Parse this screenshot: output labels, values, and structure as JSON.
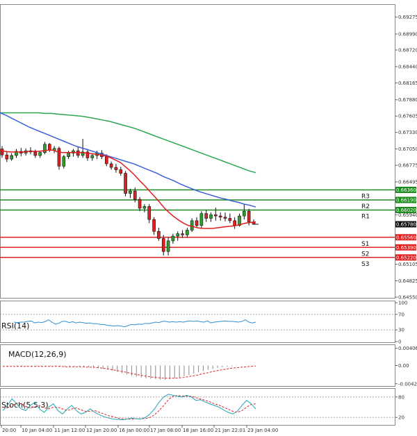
{
  "chart_data": {
    "type": "candlestick",
    "price_axis": {
      "ticks": [
        "0.69275",
        "0.68990",
        "0.68720",
        "0.68440",
        "0.68165",
        "0.67880",
        "0.67605",
        "0.67330",
        "0.67050",
        "0.66775",
        "0.66495",
        "0.66360",
        "0.66190",
        "0.66020",
        "0.65940",
        "0.65780",
        "0.65560",
        "0.65390",
        "0.65220",
        "0.65105",
        "0.64825",
        "0.64550"
      ],
      "ylim": [
        0.6455,
        0.6947
      ]
    },
    "x_ticks": [
      "20:00",
      "10 Jan 04:00",
      "11 Jan 12:00",
      "12 Jan 20:00",
      "16 Jan 00:00",
      "17 Jan 08:00",
      "18 Jan 16:00",
      "21 Jan 22:01",
      "23 Jan 04:00"
    ],
    "levels": [
      {
        "name": "R3",
        "value": 0.6636,
        "color": "#1a8a1a"
      },
      {
        "name": "R2",
        "value": 0.6619,
        "color": "#1a8a1a"
      },
      {
        "name": "R1",
        "value": 0.6602,
        "color": "#1a8a1a"
      },
      {
        "name": "S1",
        "value": 0.6556,
        "color": "#e02020"
      },
      {
        "name": "S2",
        "value": 0.6539,
        "color": "#e02020"
      },
      {
        "name": "S3",
        "value": 0.6522,
        "color": "#e02020"
      }
    ],
    "current_price": {
      "value": 0.6578,
      "label": "0.65780"
    },
    "candles": [
      [
        0.6705,
        0.671,
        0.669,
        0.6695
      ],
      [
        0.6695,
        0.67,
        0.6683,
        0.6688
      ],
      [
        0.6688,
        0.6698,
        0.6685,
        0.6694
      ],
      [
        0.6694,
        0.6705,
        0.669,
        0.6701
      ],
      [
        0.6701,
        0.6707,
        0.6693,
        0.6698
      ],
      [
        0.6698,
        0.6706,
        0.6694,
        0.6702
      ],
      [
        0.6702,
        0.6708,
        0.6696,
        0.67
      ],
      [
        0.67,
        0.6704,
        0.669,
        0.6694
      ],
      [
        0.6694,
        0.6702,
        0.669,
        0.6699
      ],
      [
        0.6699,
        0.6717,
        0.6696,
        0.6713
      ],
      [
        0.6713,
        0.6715,
        0.67,
        0.6703
      ],
      [
        0.6703,
        0.671,
        0.6698,
        0.6706
      ],
      [
        0.6706,
        0.6709,
        0.667,
        0.6676
      ],
      [
        0.6676,
        0.6695,
        0.6672,
        0.6692
      ],
      [
        0.6692,
        0.6702,
        0.6688,
        0.6698
      ],
      [
        0.6698,
        0.6705,
        0.6692,
        0.6702
      ],
      [
        0.6702,
        0.6708,
        0.669,
        0.6694
      ],
      [
        0.6694,
        0.6722,
        0.669,
        0.67
      ],
      [
        0.67,
        0.6705,
        0.6685,
        0.669
      ],
      [
        0.669,
        0.6698,
        0.6685,
        0.6694
      ],
      [
        0.6694,
        0.6702,
        0.6688,
        0.6698
      ],
      [
        0.6698,
        0.6703,
        0.6688,
        0.6692
      ],
      [
        0.6692,
        0.6696,
        0.6676,
        0.668
      ],
      [
        0.668,
        0.6684,
        0.667,
        0.6674
      ],
      [
        0.6674,
        0.668,
        0.6665,
        0.667
      ],
      [
        0.667,
        0.6675,
        0.666,
        0.6664
      ],
      [
        0.6664,
        0.6668,
        0.6625,
        0.663
      ],
      [
        0.663,
        0.6638,
        0.6622,
        0.6634
      ],
      [
        0.6634,
        0.664,
        0.6615,
        0.662
      ],
      [
        0.662,
        0.6624,
        0.66,
        0.6605
      ],
      [
        0.6605,
        0.6612,
        0.6598,
        0.6608
      ],
      [
        0.6608,
        0.6612,
        0.658,
        0.6586
      ],
      [
        0.6586,
        0.659,
        0.656,
        0.6566
      ],
      [
        0.6566,
        0.6572,
        0.655,
        0.6554
      ],
      [
        0.6554,
        0.656,
        0.6525,
        0.6532
      ],
      [
        0.6532,
        0.6556,
        0.6525,
        0.655
      ],
      [
        0.655,
        0.6562,
        0.6545,
        0.6558
      ],
      [
        0.6558,
        0.6566,
        0.655,
        0.6562
      ],
      [
        0.6562,
        0.6568,
        0.6555,
        0.656
      ],
      [
        0.656,
        0.6572,
        0.6555,
        0.6568
      ],
      [
        0.6568,
        0.6588,
        0.6565,
        0.6584
      ],
      [
        0.6584,
        0.659,
        0.6572,
        0.6576
      ],
      [
        0.6576,
        0.66,
        0.6572,
        0.6596
      ],
      [
        0.6596,
        0.6602,
        0.6582,
        0.6588
      ],
      [
        0.6588,
        0.6598,
        0.6582,
        0.6594
      ],
      [
        0.6594,
        0.6606,
        0.6584,
        0.6592
      ],
      [
        0.6592,
        0.6598,
        0.6584,
        0.659
      ],
      [
        0.659,
        0.6598,
        0.6583,
        0.6588
      ],
      [
        0.6588,
        0.6596,
        0.658,
        0.6584
      ],
      [
        0.6584,
        0.659,
        0.657,
        0.6576
      ],
      [
        0.6576,
        0.6596,
        0.6574,
        0.6592
      ],
      [
        0.6592,
        0.6612,
        0.6586,
        0.66
      ],
      [
        0.66,
        0.6604,
        0.6576,
        0.6582
      ],
      [
        0.6582,
        0.6586,
        0.6577,
        0.6578
      ]
    ],
    "ma_red": [
      0.6703,
      0.6701,
      0.67,
      0.67,
      0.67,
      0.67,
      0.6701,
      0.6701,
      0.6701,
      0.6702,
      0.6703,
      0.6703,
      0.67,
      0.6699,
      0.6699,
      0.6699,
      0.6699,
      0.6699,
      0.6698,
      0.6697,
      0.6696,
      0.6695,
      0.6693,
      0.669,
      0.6686,
      0.6682,
      0.6675,
      0.6668,
      0.666,
      0.6651,
      0.6643,
      0.6634,
      0.6625,
      0.6616,
      0.6606,
      0.6598,
      0.6591,
      0.6585,
      0.658,
      0.6576,
      0.6574,
      0.6572,
      0.6571,
      0.6571,
      0.6571,
      0.6572,
      0.6573,
      0.6574,
      0.6575,
      0.6576,
      0.6578,
      0.658,
      0.6581,
      0.6582
    ],
    "ma_blue": [
      0.6766,
      0.6762,
      0.6757,
      0.6752,
      0.6747,
      0.6742,
      0.6738,
      0.6734,
      0.673,
      0.6726,
      0.6722,
      0.6718,
      0.6714,
      0.671,
      0.6707,
      0.6704,
      0.6701,
      0.6698,
      0.6695,
      0.6692,
      0.6689,
      0.6686,
      0.6683,
      0.668,
      0.6676,
      0.6672,
      0.6668,
      0.6664,
      0.6659,
      0.6655,
      0.6651,
      0.6646,
      0.6642,
      0.6638,
      0.6634,
      0.6631,
      0.6628,
      0.6625,
      0.6622,
      0.662,
      0.6617,
      0.6615,
      0.6612,
      0.661,
      0.6607
    ],
    "ma_green": [
      0.6766,
      0.6766,
      0.6766,
      0.6766,
      0.6766,
      0.6766,
      0.6766,
      0.6765,
      0.6765,
      0.6764,
      0.6763,
      0.6762,
      0.6761,
      0.676,
      0.6758,
      0.6756,
      0.6754,
      0.6752,
      0.6749,
      0.6746,
      0.6743,
      0.674,
      0.6736,
      0.6732,
      0.6728,
      0.6724,
      0.672,
      0.6716,
      0.6712,
      0.6708,
      0.6704,
      0.67,
      0.6696,
      0.6692,
      0.6688,
      0.6684,
      0.668,
      0.6676,
      0.6672,
      0.6668,
      0.6665
    ],
    "rsi": {
      "label": "RSI(14)",
      "ticks": [
        "100",
        "70",
        "30",
        "0"
      ],
      "values": [
        50,
        49,
        50,
        50,
        52,
        53,
        48,
        50,
        49,
        51,
        56,
        50,
        45,
        47,
        52,
        52,
        49,
        51,
        48,
        50,
        49,
        47,
        48,
        46,
        46,
        44,
        44,
        42,
        41,
        40,
        41,
        40,
        38,
        41,
        44,
        43,
        45,
        44,
        47,
        46,
        48,
        50,
        49,
        52,
        52,
        50,
        51,
        50,
        51,
        50,
        52,
        53,
        52,
        53,
        51,
        50,
        53,
        48,
        50,
        51,
        52,
        53,
        52,
        52,
        51,
        50,
        52,
        56,
        50,
        48,
        50
      ]
    },
    "macd": {
      "label": "MACD(12,26,9)",
      "ticks": [
        "0.004062",
        "0.00",
        "-0.004297"
      ],
      "ylim": [
        -0.0045,
        0.0045
      ],
      "hist": [
        0.0,
        -0.0001,
        -0.0001,
        -0.0002,
        -0.0002,
        -0.0002,
        -0.0002,
        -0.0002,
        -0.0002,
        -0.0002,
        -0.0002,
        -0.0002,
        -0.0003,
        -0.0003,
        -0.0003,
        -0.0003,
        -0.0003,
        -0.0003,
        -0.0004,
        -0.0005,
        -0.0006,
        -0.0008,
        -0.001,
        -0.0012,
        -0.0015,
        -0.0018,
        -0.0021,
        -0.0024,
        -0.0026,
        -0.0028,
        -0.003,
        -0.0031,
        -0.0032,
        -0.0033,
        -0.0033,
        -0.0032,
        -0.003,
        -0.0028,
        -0.0025,
        -0.0022,
        -0.0019,
        -0.0016,
        -0.0013,
        -0.001,
        -0.0008,
        -0.0006,
        -0.0004,
        -0.0003,
        -0.0002,
        -0.0001,
        -0.0001,
        0.0,
        0.0,
        0.0
      ],
      "signal": [
        -0.0002,
        -0.0002,
        -0.0002,
        -0.0002,
        -0.0002,
        -0.0002,
        -0.0002,
        -0.0002,
        -0.0002,
        -0.0002,
        -0.0002,
        -0.0002,
        -0.0002,
        -0.0003,
        -0.0003,
        -0.0003,
        -0.0003,
        -0.0003,
        -0.0004,
        -0.0004,
        -0.0005,
        -0.0006,
        -0.0008,
        -0.001,
        -0.0012,
        -0.0014,
        -0.0016,
        -0.0019,
        -0.0021,
        -0.0023,
        -0.0025,
        -0.0027,
        -0.0028,
        -0.0029,
        -0.003,
        -0.003,
        -0.003,
        -0.0029,
        -0.0028,
        -0.0026,
        -0.0024,
        -0.0022,
        -0.0019,
        -0.0017,
        -0.0014,
        -0.0012,
        -0.001,
        -0.0008,
        -0.0006,
        -0.0005,
        -0.0004,
        -0.0003,
        -0.0002,
        -0.0001
      ]
    },
    "stoch": {
      "label": "Stoch(5,5,3)",
      "ticks": [
        "80",
        "20"
      ],
      "main": [
        40,
        55,
        75,
        60,
        45,
        40,
        55,
        65,
        45,
        35,
        50,
        60,
        40,
        30,
        45,
        55,
        40,
        30,
        35,
        45,
        35,
        28,
        22,
        18,
        15,
        14,
        13,
        15,
        18,
        16,
        15,
        20,
        30,
        45,
        65,
        80,
        88,
        85,
        82,
        80,
        85,
        80,
        70,
        72,
        65,
        60,
        55,
        50,
        42,
        35,
        30,
        38,
        55,
        70,
        60,
        45
      ],
      "signal": [
        50,
        48,
        55,
        62,
        60,
        52,
        48,
        52,
        55,
        48,
        45,
        50,
        50,
        45,
        40,
        45,
        48,
        42,
        38,
        38,
        40,
        35,
        30,
        25,
        22,
        18,
        16,
        15,
        15,
        16,
        16,
        17,
        20,
        28,
        40,
        55,
        72,
        82,
        84,
        83,
        82,
        82,
        78,
        74,
        70,
        66,
        60,
        56,
        50,
        44,
        38,
        35,
        40,
        50,
        58,
        60
      ]
    }
  }
}
